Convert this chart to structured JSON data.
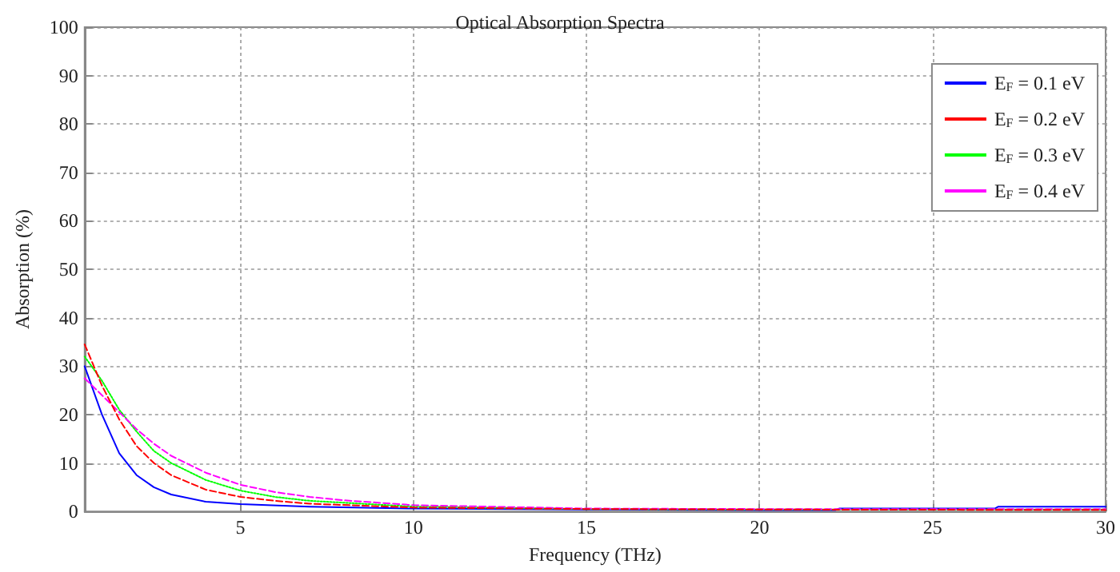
{
  "chart_data": {
    "type": "line",
    "title": "Optical Absorption Spectra",
    "xlabel": "Frequency (THz)",
    "ylabel": "Absorption (%)",
    "xlim": [
      0.5,
      30
    ],
    "xticks": [
      5,
      10,
      15,
      20,
      25,
      30
    ],
    "ylim": [
      0,
      100
    ],
    "yticks": [
      0,
      10,
      20,
      30,
      40,
      50,
      60,
      70,
      80,
      90,
      100
    ],
    "grid": true,
    "legend": "top right",
    "marker": "none",
    "series": [
      {
        "name": "E$_{F}$ = 0.1 eV",
        "color": "#0000ff",
        "line_style": "solid",
        "x": [
          0.5,
          1,
          1.5,
          2,
          2.5,
          3,
          4,
          5,
          7,
          10,
          15,
          20,
          22.2,
          22.3,
          26.8,
          26.9,
          30
        ],
        "values": [
          30,
          20,
          12,
          7.5,
          5,
          3.5,
          2,
          1.5,
          1,
          0.6,
          0.4,
          0.3,
          0.3,
          0.6,
          0.6,
          1,
          1
        ]
      },
      {
        "name": "E$_{F}$ = 0.2 eV",
        "color": "#ff0000",
        "line_style": "dashed",
        "x": [
          0.5,
          1,
          1.5,
          2,
          2.5,
          3,
          4,
          5,
          6,
          7,
          10,
          15,
          20,
          30
        ],
        "values": [
          34.5,
          26,
          19,
          13.5,
          10,
          7.5,
          4.5,
          3,
          2.2,
          1.6,
          0.8,
          0.5,
          0.4,
          0.3
        ]
      },
      {
        "name": "E$_{F}$ = 0.3 eV",
        "color": "#00ff00",
        "line_style": "dotted",
        "x": [
          0.5,
          1,
          1.5,
          2,
          2.5,
          3,
          4,
          5,
          6,
          7,
          10,
          15,
          20,
          30
        ],
        "values": [
          32,
          27,
          21,
          16.5,
          12.5,
          10,
          6.5,
          4.3,
          3,
          2.2,
          1,
          0.5,
          0.4,
          0.4
        ]
      },
      {
        "name": "E$_{F}$ = 0.4 eV",
        "color": "#ff00ff",
        "line_style": "dashed",
        "x": [
          0.5,
          1,
          1.5,
          2,
          2.5,
          3,
          4,
          5,
          6,
          7,
          8,
          10,
          15,
          20,
          30
        ],
        "values": [
          27.5,
          24,
          20.5,
          17,
          14,
          11.5,
          8,
          5.5,
          4,
          3,
          2.3,
          1.3,
          0.6,
          0.5,
          0.5
        ]
      }
    ]
  }
}
